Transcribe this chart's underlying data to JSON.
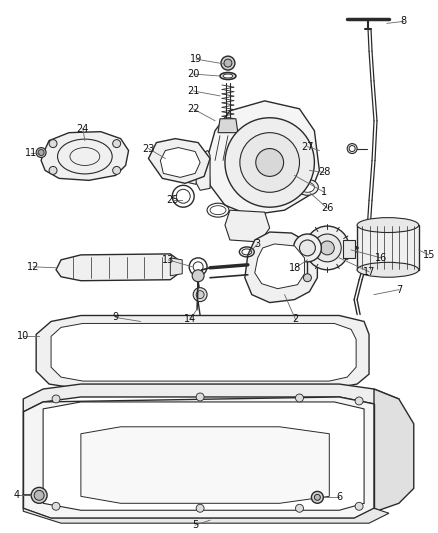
{
  "background_color": "#ffffff",
  "line_color": "#2a2a2a",
  "label_color": "#111111",
  "label_fontsize": 7.0,
  "fig_width": 4.38,
  "fig_height": 5.33,
  "dpi": 100
}
